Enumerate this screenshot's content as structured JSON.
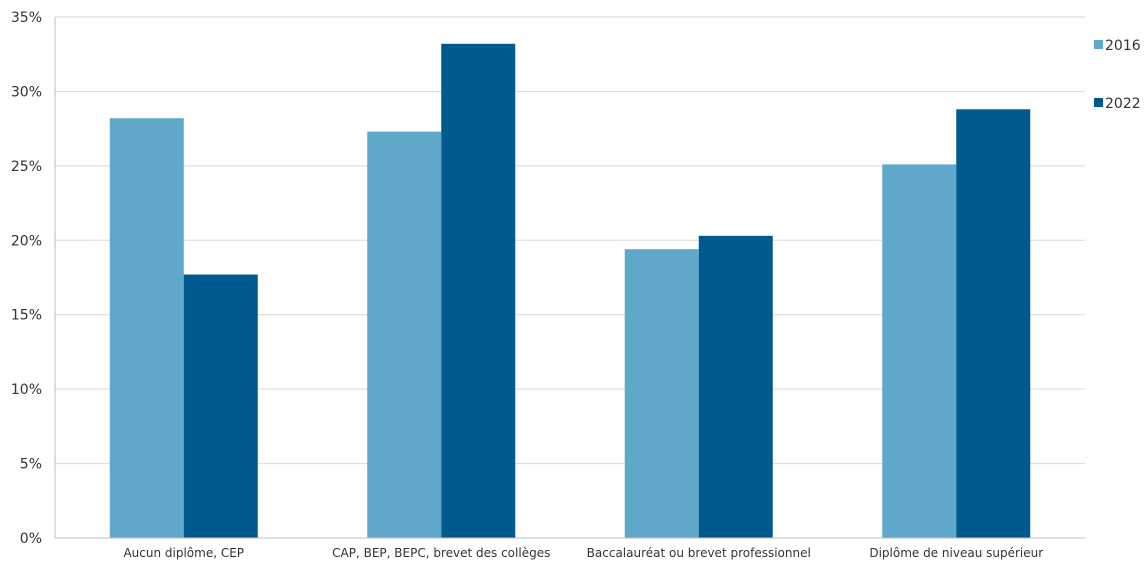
{
  "chart_data": {
    "type": "bar",
    "categories": [
      "Aucun diplôme, CEP",
      "CAP, BEP, BEPC, brevet des collèges",
      "Baccalauréat ou brevet professionnel",
      "Diplôme de niveau supérieur"
    ],
    "series": [
      {
        "name": "2016",
        "color": "#5fa8c9",
        "values": [
          28.2,
          27.3,
          19.4,
          25.1
        ]
      },
      {
        "name": "2022",
        "color": "#005a8e",
        "values": [
          17.7,
          33.2,
          20.3,
          28.8
        ]
      }
    ],
    "yticks": [
      "0%",
      "5%",
      "10%",
      "15%",
      "20%",
      "25%",
      "30%",
      "35%"
    ],
    "ylim": [
      0,
      35
    ],
    "grid": true,
    "legend": "right"
  }
}
